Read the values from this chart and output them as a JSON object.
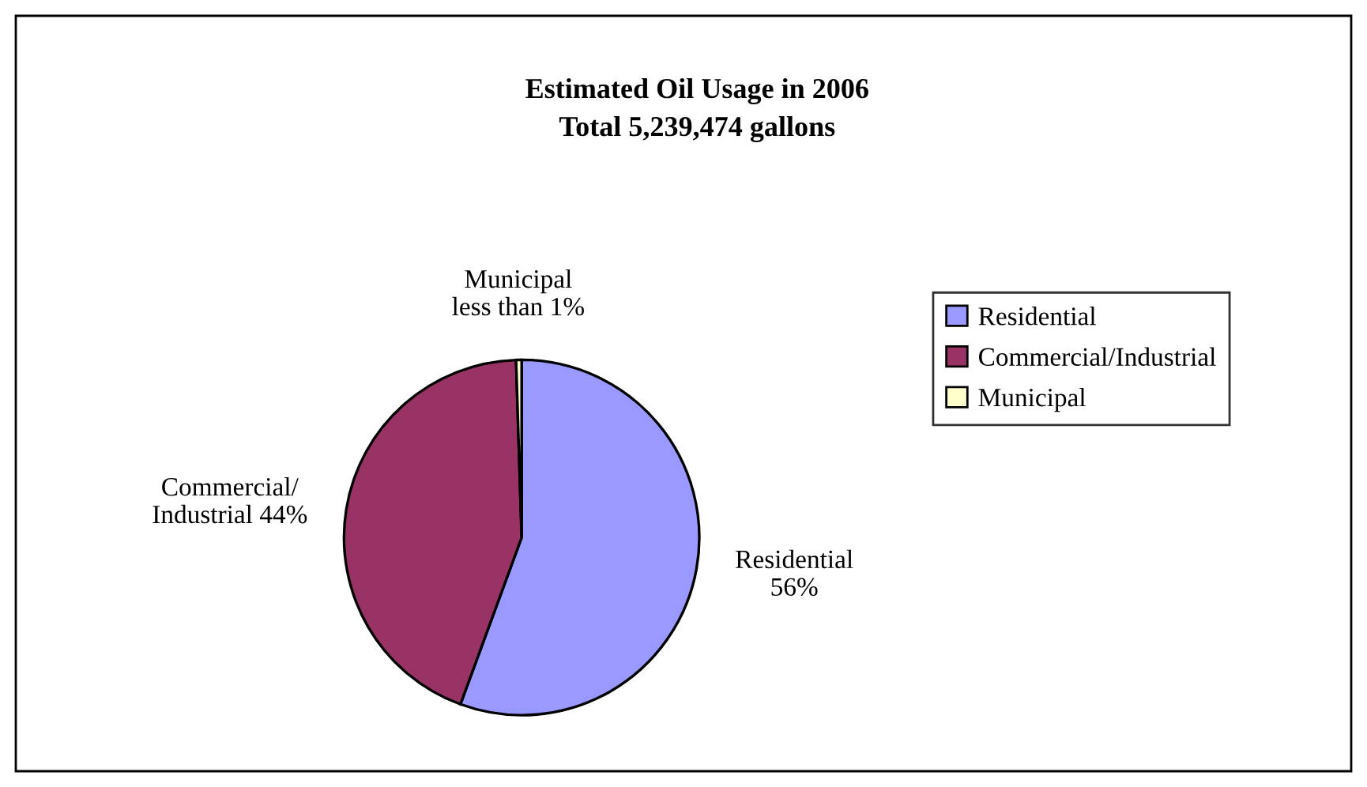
{
  "chart_data": {
    "type": "pie",
    "title": "Estimated Oil Usage in 2006\nTotal 5,239,474 gallons",
    "categories": [
      "Residential",
      "Commercial/Industrial",
      "Municipal"
    ],
    "values": [
      55.6,
      43.9,
      0.5
    ],
    "colors": [
      "#9999ff",
      "#993366",
      "#ffffcc"
    ],
    "value_labels": [
      "Residential\n56%",
      "Commercial/\nIndustrial 44%",
      "Municipal\nless than 1%"
    ],
    "legend": "right"
  }
}
